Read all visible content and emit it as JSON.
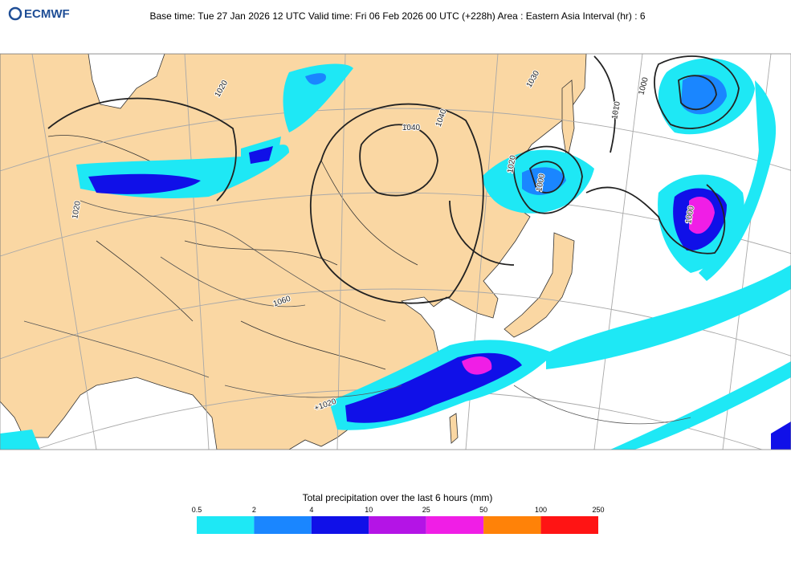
{
  "header": {
    "logo": "ECMWF",
    "title": "Base time: Tue 27 Jan 2026 12 UTC Valid time: Fri 06 Feb 2026 00 UTC (+228h) Area : Eastern Asia Interval (hr) : 6"
  },
  "map": {
    "isobar_labels": [
      "1040",
      "1040",
      "1030",
      "1020",
      "1020",
      "1020",
      "1010",
      "1000",
      "1000",
      "1000",
      "1060",
      "+1020"
    ]
  },
  "colorbar": {
    "title": "Total precipitation over the last 6 hours (mm)",
    "bins": [
      0.5,
      2,
      4,
      10,
      25,
      50,
      100,
      250
    ],
    "colors": [
      "#1ee8f5",
      "#1a86ff",
      "#1010e8",
      "#b414e6",
      "#f01ee6",
      "#ff8208",
      "#ff1414"
    ]
  }
}
